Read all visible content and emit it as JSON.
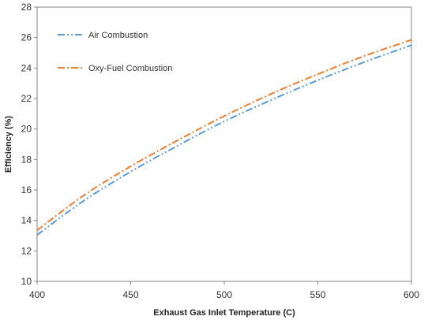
{
  "chart_data": {
    "type": "line",
    "xlabel": "Exhaust Gas Inlet Temperature (C)",
    "ylabel": "Efficiency  (%)",
    "xlim": [
      400,
      600
    ],
    "ylim": [
      10,
      28
    ],
    "xticks": [
      400,
      450,
      500,
      550,
      600
    ],
    "yticks": [
      10,
      12,
      14,
      16,
      18,
      20,
      22,
      24,
      26,
      28
    ],
    "grid": false,
    "legend_position": "top-left",
    "series": [
      {
        "name": "Air Combustion",
        "color": "#5B9BD5",
        "dash": "dash-dot-dot",
        "x": [
          400,
          425,
          450,
          475,
          500,
          525,
          550,
          575,
          600
        ],
        "y": [
          13.05,
          15.3,
          17.2,
          18.9,
          20.5,
          21.9,
          23.2,
          24.4,
          25.5
        ]
      },
      {
        "name": "Oxy-Fuel Combustion",
        "color": "#ED7D31",
        "dash": "dash-dot",
        "x": [
          400,
          425,
          450,
          475,
          500,
          525,
          550,
          575,
          600
        ],
        "y": [
          13.35,
          15.65,
          17.55,
          19.25,
          20.85,
          22.3,
          23.6,
          24.8,
          25.85
        ]
      }
    ]
  }
}
